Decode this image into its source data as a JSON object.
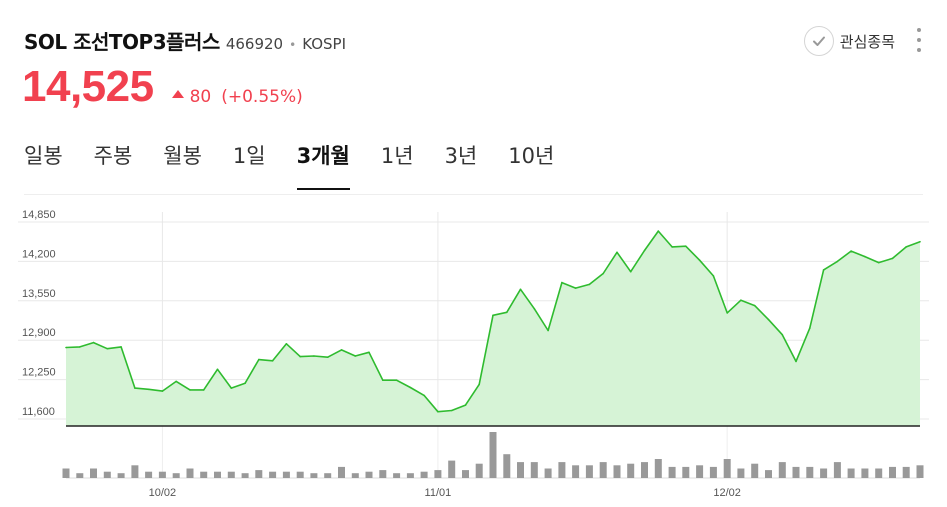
{
  "stock": {
    "name": "SOL 조선TOP3플러스",
    "code": "466920",
    "separator": "•",
    "market": "KOSPI",
    "price": "14,525",
    "change": "80",
    "change_pct": "(+0.55%)",
    "favorite_label": "관심종목"
  },
  "tabs": [
    {
      "label": "일봉",
      "active": false
    },
    {
      "label": "주봉",
      "active": false
    },
    {
      "label": "월봉",
      "active": false
    },
    {
      "label": "1일",
      "active": false
    },
    {
      "label": "3개월",
      "active": true
    },
    {
      "label": "1년",
      "active": false
    },
    {
      "label": "3년",
      "active": false
    },
    {
      "label": "10년",
      "active": false
    }
  ],
  "colors": {
    "up": "#f1414f",
    "line": "#2fbb2f",
    "fill": "#d6f3d6",
    "volume": "#999999"
  },
  "chart_data": {
    "type": "area",
    "y_ticks": [
      "14,850",
      "14,200",
      "13,550",
      "12,900",
      "12,250",
      "11,600"
    ],
    "ylim": [
      11600,
      14850
    ],
    "x_ticks": [
      {
        "label": "10/02",
        "index": 7
      },
      {
        "label": "11/01",
        "index": 27
      },
      {
        "label": "12/02",
        "index": 48
      }
    ],
    "grid": true,
    "values": [
      12780,
      12790,
      12860,
      12760,
      12790,
      12110,
      12090,
      12060,
      12220,
      12080,
      12080,
      12420,
      12110,
      12190,
      12580,
      12560,
      12840,
      12630,
      12640,
      12620,
      12740,
      12640,
      12700,
      12240,
      12240,
      12120,
      11990,
      11720,
      11740,
      11830,
      12170,
      13310,
      13360,
      13740,
      13420,
      13060,
      13850,
      13760,
      13820,
      14000,
      14350,
      14030,
      14380,
      14700,
      14440,
      14450,
      14220,
      13960,
      13350,
      13560,
      13470,
      13240,
      12990,
      12550,
      13100,
      14060,
      14200,
      14370,
      14280,
      14180,
      14250,
      14440,
      14525
    ],
    "volume": [
      6,
      3,
      6,
      4,
      3,
      8,
      4,
      4,
      3,
      6,
      4,
      4,
      4,
      3,
      5,
      4,
      4,
      4,
      3,
      3,
      7,
      3,
      4,
      5,
      3,
      3,
      4,
      5,
      11,
      5,
      9,
      29,
      15,
      10,
      10,
      6,
      10,
      8,
      8,
      10,
      8,
      9,
      10,
      12,
      7,
      7,
      8,
      7,
      12,
      6,
      9,
      5,
      10,
      7,
      7,
      6,
      10,
      6,
      6,
      6,
      7,
      7,
      8
    ]
  }
}
